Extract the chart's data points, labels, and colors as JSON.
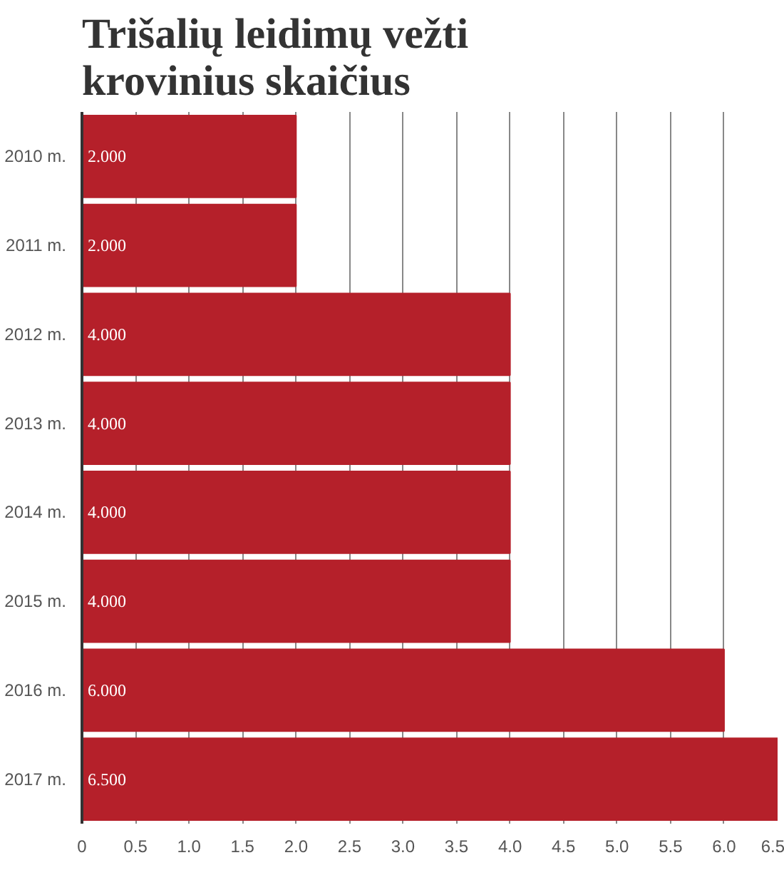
{
  "chart_data": {
    "type": "bar",
    "orientation": "horizontal",
    "title": "Trišalių leidimų vežti krovinius skaičius",
    "categories": [
      "2010 m.",
      "2011 m.",
      "2012 m.",
      "2013 m.",
      "2014 m.",
      "2015 m.",
      "2016 m.",
      "2017 m."
    ],
    "values": [
      2.0,
      2.0,
      4.0,
      4.0,
      4.0,
      4.0,
      6.0,
      6.5
    ],
    "value_labels": [
      "2.000",
      "2.000",
      "4.000",
      "4.000",
      "4.000",
      "4.000",
      "6.000",
      "6.500"
    ],
    "color": "#b5202a",
    "xlim": [
      0,
      6.5
    ],
    "xticks": [
      0,
      0.5,
      {
        "value": 1,
        "label": "1.0"
      },
      1.5,
      {
        "value": 2,
        "label": "2.0"
      },
      2.5,
      {
        "value": 3,
        "label": "3.0"
      },
      3.5,
      {
        "value": 4,
        "label": "4.0"
      },
      4.5,
      {
        "value": 5,
        "label": "5.0"
      },
      5.5,
      {
        "value": 6,
        "label": "6.0"
      },
      6.5
    ],
    "grid": "x"
  }
}
